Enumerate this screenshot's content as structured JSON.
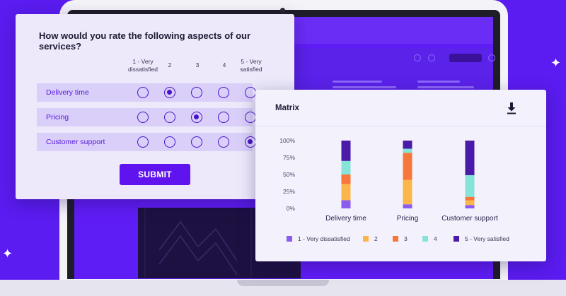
{
  "survey": {
    "question": "How would you rate the following aspects of our services?",
    "scale": [
      {
        "line1": "1 - Very",
        "line2": "dissatisfied"
      },
      {
        "line1": "2",
        "line2": ""
      },
      {
        "line1": "3",
        "line2": ""
      },
      {
        "line1": "4",
        "line2": ""
      },
      {
        "line1": "5 - Very",
        "line2": "satisfied"
      }
    ],
    "rows": [
      {
        "label": "Delivery time",
        "selected": 2
      },
      {
        "label": "Pricing",
        "selected": 3
      },
      {
        "label": "Customer support",
        "selected": 5
      }
    ],
    "submit_label": "SUBMIT"
  },
  "matrix": {
    "title": "Matrix",
    "download_icon": "download-icon"
  },
  "chart_data": {
    "type": "bar",
    "stacked": true,
    "percent": true,
    "categories": [
      "Delivery time",
      "Pricing",
      "Customer support"
    ],
    "y_ticks": [
      "0%",
      "25%",
      "50%",
      "75%",
      "100%"
    ],
    "ylim": [
      0,
      100
    ],
    "series": [
      {
        "name": "1 - Very dissatisfied",
        "color": "#8b5cf0",
        "values": [
          12,
          6,
          5
        ]
      },
      {
        "name": "2",
        "color": "#fbb64a",
        "values": [
          24,
          36,
          7
        ]
      },
      {
        "name": "3",
        "color": "#f7773a",
        "values": [
          14,
          40,
          5
        ]
      },
      {
        "name": "4",
        "color": "#86e3d7",
        "values": [
          20,
          6,
          32
        ]
      },
      {
        "name": "5 - Very satisfied",
        "color": "#4a1aa8",
        "values": [
          30,
          12,
          51
        ]
      }
    ]
  }
}
